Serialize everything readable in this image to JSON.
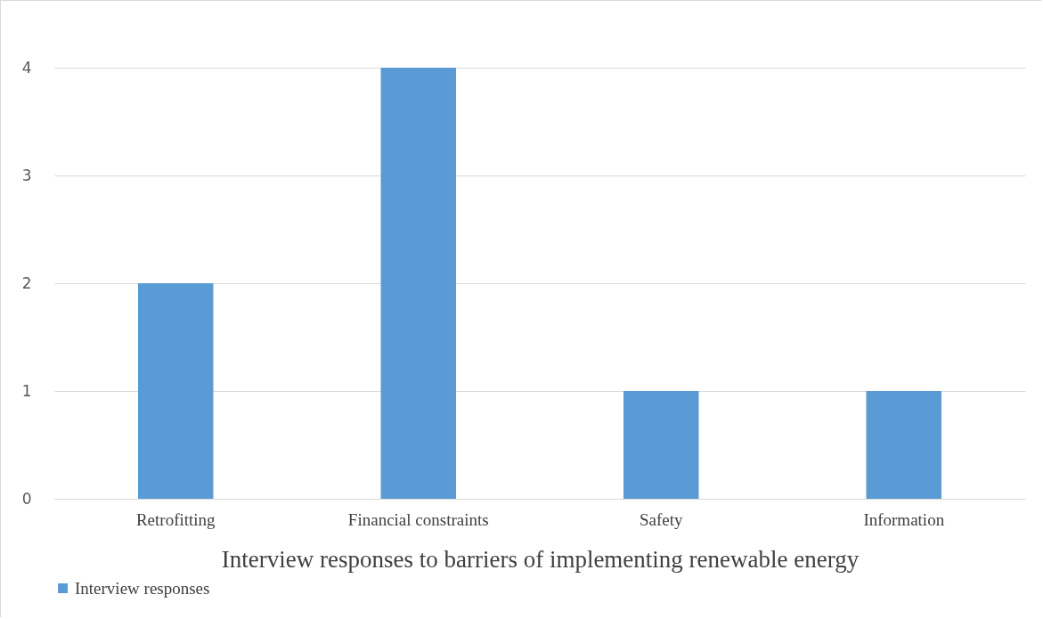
{
  "chart_data": {
    "type": "bar",
    "xlabel": "Interview responses to barriers of implementing renewable energy",
    "categories": [
      "Retrofitting",
      "Financial constraints",
      "Safety",
      "Information"
    ],
    "series": [
      {
        "name": "Interview responses",
        "color": "#5b9bd5",
        "values": [
          2,
          4,
          1,
          1
        ]
      }
    ],
    "ylim": [
      0,
      4
    ],
    "yticks": [
      0,
      1,
      2,
      3,
      4
    ],
    "grid": "y",
    "legend": "bottom"
  }
}
